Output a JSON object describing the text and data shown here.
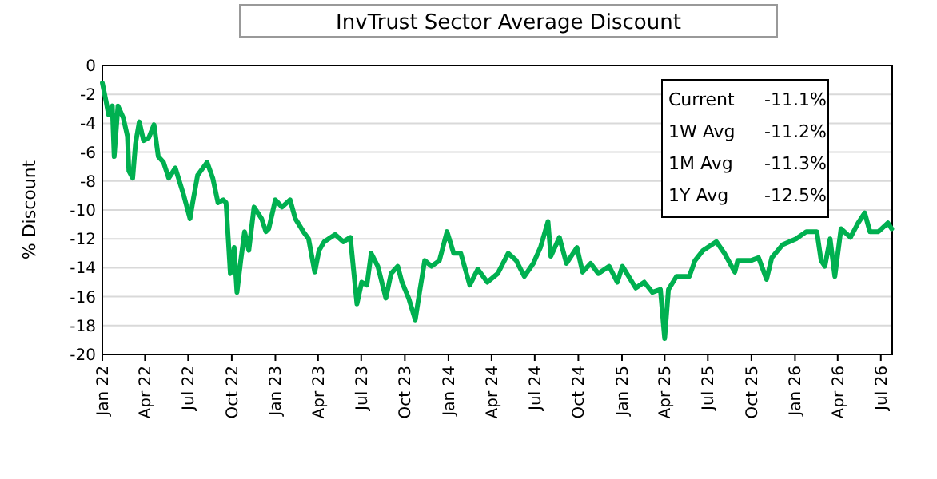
{
  "chart_data": {
    "type": "line",
    "title": "InvTrust Sector Average Discount",
    "ylabel": "% Discount",
    "x": [
      "2022-01-01",
      "2022-01-09",
      "2022-01-14",
      "2022-01-22",
      "2022-01-26",
      "2022-02-03",
      "2022-02-14",
      "2022-02-23",
      "2022-02-26",
      "2022-03-06",
      "2022-03-12",
      "2022-03-20",
      "2022-03-29",
      "2022-04-09",
      "2022-04-20",
      "2022-04-29",
      "2022-05-10",
      "2022-05-21",
      "2022-06-04",
      "2022-06-21",
      "2022-07-05",
      "2022-07-10",
      "2022-07-21",
      "2022-08-10",
      "2022-08-22",
      "2022-09-02",
      "2022-09-13",
      "2022-09-19",
      "2022-09-28",
      "2022-10-06",
      "2022-10-12",
      "2022-10-20",
      "2022-10-28",
      "2022-11-06",
      "2022-11-17",
      "2022-12-03",
      "2022-12-12",
      "2022-12-18",
      "2023-01-01",
      "2023-01-15",
      "2023-02-01",
      "2023-02-12",
      "2023-03-01",
      "2023-03-12",
      "2023-03-25",
      "2023-04-03",
      "2023-04-14",
      "2023-05-07",
      "2023-05-24",
      "2023-06-08",
      "2023-06-22",
      "2023-07-02",
      "2023-07-13",
      "2023-07-22",
      "2023-08-05",
      "2023-08-22",
      "2023-09-02",
      "2023-09-16",
      "2023-09-25",
      "2023-10-09",
      "2023-10-23",
      "2023-11-01",
      "2023-11-12",
      "2023-11-26",
      "2023-12-13",
      "2023-12-29",
      "2024-01-12",
      "2024-01-27",
      "2024-02-15",
      "2024-03-03",
      "2024-03-23",
      "2024-04-14",
      "2024-05-06",
      "2024-05-23",
      "2024-06-09",
      "2024-06-28",
      "2024-07-13",
      "2024-07-29",
      "2024-08-04",
      "2024-08-22",
      "2024-09-06",
      "2024-09-28",
      "2024-10-10",
      "2024-10-27",
      "2024-11-12",
      "2024-12-05",
      "2024-12-22",
      "2025-01-02",
      "2025-01-30",
      "2025-02-17",
      "2025-03-06",
      "2025-03-23",
      "2025-04-01",
      "2025-04-09",
      "2025-04-26",
      "2025-05-23",
      "2025-06-04",
      "2025-06-21",
      "2025-07-19",
      "2025-08-05",
      "2025-08-27",
      "2025-09-02",
      "2025-09-30",
      "2025-10-16",
      "2025-11-02",
      "2025-11-13",
      "2025-12-06",
      "2026-01-03",
      "2026-01-25",
      "2026-02-16",
      "2026-02-25",
      "2026-03-05",
      "2026-03-16",
      "2026-03-26",
      "2026-04-08",
      "2026-04-28",
      "2026-05-14",
      "2026-05-28",
      "2026-06-08",
      "2026-06-26",
      "2026-07-16",
      "2026-07-24"
    ],
    "series": [
      {
        "color": "#00b050",
        "values": [
          -1.2,
          -2.5,
          -3.4,
          -2.8,
          -6.3,
          -2.8,
          -3.6,
          -4.9,
          -7.3,
          -7.8,
          -5.4,
          -3.9,
          -5.2,
          -5.0,
          -4.1,
          -6.3,
          -6.7,
          -7.8,
          -7.1,
          -8.9,
          -10.6,
          -9.6,
          -7.6,
          -6.7,
          -7.8,
          -9.5,
          -9.3,
          -9.5,
          -14.4,
          -12.6,
          -15.7,
          -13.5,
          -11.5,
          -12.8,
          -9.8,
          -10.6,
          -11.5,
          -11.3,
          -9.3,
          -9.8,
          -9.3,
          -10.6,
          -11.5,
          -12.0,
          -14.3,
          -12.8,
          -12.2,
          -11.7,
          -12.2,
          -11.9,
          -16.5,
          -15.0,
          -15.2,
          -13.0,
          -13.9,
          -16.1,
          -14.4,
          -13.9,
          -15.0,
          -16.1,
          -17.6,
          -15.7,
          -13.5,
          -13.9,
          -13.5,
          -11.5,
          -13.0,
          -13.0,
          -15.2,
          -14.1,
          -15.0,
          -14.4,
          -13.0,
          -13.5,
          -14.6,
          -13.7,
          -12.6,
          -10.8,
          -13.2,
          -11.9,
          -13.7,
          -12.6,
          -14.3,
          -13.7,
          -14.4,
          -13.9,
          -15.0,
          -13.9,
          -15.4,
          -15.0,
          -15.7,
          -15.5,
          -18.9,
          -15.5,
          -14.6,
          -14.6,
          -13.5,
          -12.8,
          -12.2,
          -13.0,
          -14.3,
          -13.5,
          -13.5,
          -13.3,
          -14.8,
          -13.3,
          -12.4,
          -12.0,
          -11.5,
          -11.5,
          -13.5,
          -13.9,
          -12.0,
          -14.6,
          -11.3,
          -11.9,
          -10.9,
          -10.2,
          -11.5,
          -11.5,
          -10.9,
          -11.3
        ]
      }
    ],
    "xlim": [
      "2022-01-01",
      "2026-07-25"
    ],
    "xticks": [
      {
        "value": "2022-01-01",
        "label": "Jan 22"
      },
      {
        "value": "2022-04-01",
        "label": "Apr 22"
      },
      {
        "value": "2022-07-01",
        "label": "Jul 22"
      },
      {
        "value": "2022-10-01",
        "label": "Oct 22"
      },
      {
        "value": "2023-01-01",
        "label": "Jan 23"
      },
      {
        "value": "2023-04-01",
        "label": "Apr 23"
      },
      {
        "value": "2023-07-01",
        "label": "Jul 23"
      },
      {
        "value": "2023-10-01",
        "label": "Oct 23"
      },
      {
        "value": "2024-01-01",
        "label": "Jan 24"
      },
      {
        "value": "2024-04-01",
        "label": "Apr 24"
      },
      {
        "value": "2024-07-01",
        "label": "Jul 24"
      },
      {
        "value": "2024-10-01",
        "label": "Oct 24"
      },
      {
        "value": "2025-01-01",
        "label": "Jan 25"
      },
      {
        "value": "2025-04-01",
        "label": "Apr 25"
      },
      {
        "value": "2025-07-01",
        "label": "Jul 25"
      },
      {
        "value": "2025-10-01",
        "label": "Oct 25"
      },
      {
        "value": "2026-01-01",
        "label": "Jan 26"
      },
      {
        "value": "2026-04-01",
        "label": "Apr 26"
      },
      {
        "value": "2026-07-01",
        "label": "Jul 26"
      }
    ],
    "ylim": [
      -20,
      0
    ],
    "yticks": [
      -20,
      -18,
      -16,
      -14,
      -12,
      -10,
      -8,
      -6,
      -4,
      -2,
      0
    ],
    "grid": "y",
    "marker": "none",
    "line_style": "solid",
    "annotations": [
      "Current",
      "-11.1%",
      "1W Avg",
      "-11.2%",
      "1M Avg",
      "-11.3%",
      "1Y Avg",
      "-12.5%"
    ]
  }
}
